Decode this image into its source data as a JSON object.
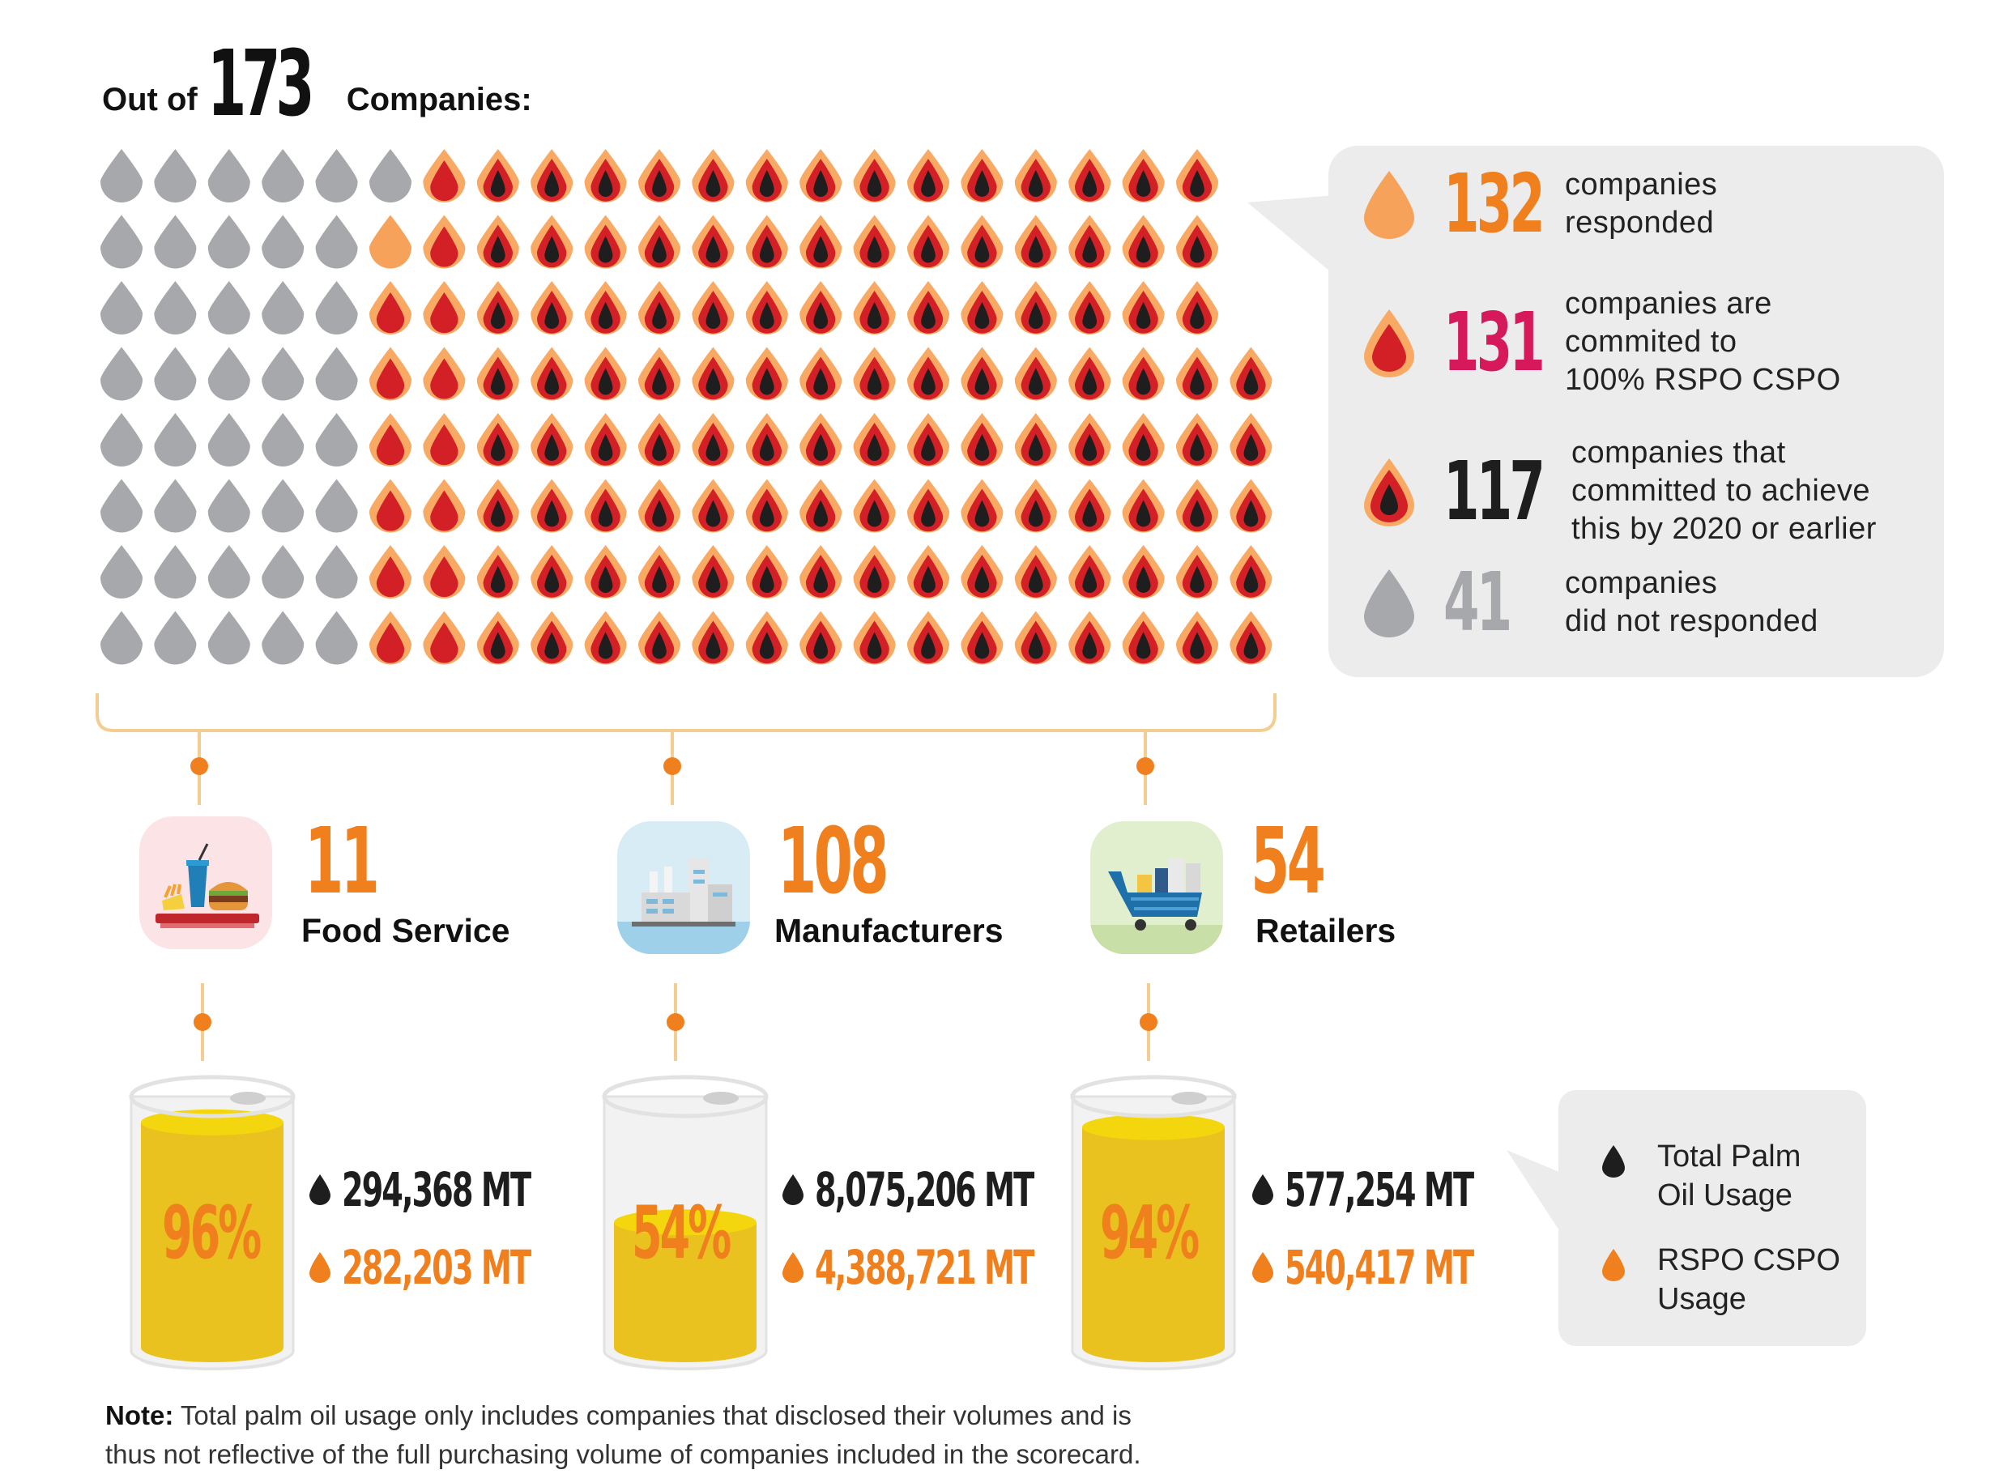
{
  "title": {
    "prefix": "Out of",
    "total": "173",
    "suffix": "Companies:"
  },
  "colors": {
    "gray": "#a7a8ab",
    "light_orange": "#f7a25a",
    "orange_rim": "#f8a963",
    "red": "#d31f26",
    "black": "#1e1e1e",
    "accent_orange": "#f07f1e",
    "magenta": "#d6195b",
    "light_gray_number": "#a7a8ab"
  },
  "chart_data": {
    "type": "waffle",
    "total": 173,
    "columns": [
      "not_responded",
      "responded",
      "committed_100",
      "committed_2020"
    ],
    "grid_rows": [
      [
        "gray",
        "gray",
        "gray",
        "gray",
        "gray",
        "gray",
        "red",
        "black",
        "black",
        "black",
        "black",
        "black",
        "black",
        "black",
        "black",
        "black",
        "black",
        "black",
        "black",
        "black",
        "black"
      ],
      [
        "gray",
        "gray",
        "gray",
        "gray",
        "gray",
        "orange",
        "red",
        "black",
        "black",
        "black",
        "black",
        "black",
        "black",
        "black",
        "black",
        "black",
        "black",
        "black",
        "black",
        "black",
        "black"
      ],
      [
        "gray",
        "gray",
        "gray",
        "gray",
        "gray",
        "red",
        "red",
        "black",
        "black",
        "black",
        "black",
        "black",
        "black",
        "black",
        "black",
        "black",
        "black",
        "black",
        "black",
        "black",
        "black"
      ],
      [
        "gray",
        "gray",
        "gray",
        "gray",
        "gray",
        "red",
        "red",
        "black",
        "black",
        "black",
        "black",
        "black",
        "black",
        "black",
        "black",
        "black",
        "black",
        "black",
        "black",
        "black",
        "black",
        "black"
      ],
      [
        "gray",
        "gray",
        "gray",
        "gray",
        "gray",
        "red",
        "red",
        "black",
        "black",
        "black",
        "black",
        "black",
        "black",
        "black",
        "black",
        "black",
        "black",
        "black",
        "black",
        "black",
        "black",
        "black"
      ],
      [
        "gray",
        "gray",
        "gray",
        "gray",
        "gray",
        "red",
        "red",
        "black",
        "black",
        "black",
        "black",
        "black",
        "black",
        "black",
        "black",
        "black",
        "black",
        "black",
        "black",
        "black",
        "black",
        "black"
      ],
      [
        "gray",
        "gray",
        "gray",
        "gray",
        "gray",
        "red",
        "red",
        "black",
        "black",
        "black",
        "black",
        "black",
        "black",
        "black",
        "black",
        "black",
        "black",
        "black",
        "black",
        "black",
        "black",
        "black"
      ],
      [
        "gray",
        "gray",
        "gray",
        "gray",
        "gray",
        "red",
        "red",
        "black",
        "black",
        "black",
        "black",
        "black",
        "black",
        "black",
        "black",
        "black",
        "black",
        "black",
        "black",
        "black",
        "black",
        "black"
      ]
    ],
    "legend": [
      {
        "key": "responded",
        "value": "132",
        "lines": [
          "companies",
          "responded"
        ]
      },
      {
        "key": "committed_100",
        "value": "131",
        "lines": [
          "companies are",
          "commited to",
          "100% RSPO CSPO"
        ]
      },
      {
        "key": "committed_2020",
        "value": "117",
        "lines": [
          "companies that",
          "committed to achieve",
          "this by 2020 or earlier"
        ]
      },
      {
        "key": "not_responded",
        "value": "41",
        "lines": [
          "companies",
          "did not responded"
        ]
      }
    ],
    "sectors": [
      {
        "count": "11",
        "label": "Food Service",
        "icon": "food-tray-icon",
        "percent": 96,
        "percent_label": "96%",
        "total_usage": "294,368 MT",
        "rspo_usage": "282,203 MT"
      },
      {
        "count": "108",
        "label": "Manufacturers",
        "icon": "factory-icon",
        "percent": 54,
        "percent_label": "54%",
        "total_usage": "8,075,206 MT",
        "rspo_usage": "4,388,721 MT"
      },
      {
        "count": "54",
        "label": "Retailers",
        "icon": "shopping-cart-icon",
        "percent": 94,
        "percent_label": "94%",
        "total_usage": "577,254 MT",
        "rspo_usage": "540,417 MT"
      }
    ],
    "usage_legend": [
      {
        "key": "total",
        "lines": [
          "Total Palm",
          "Oil Usage"
        ]
      },
      {
        "key": "rspo",
        "lines": [
          "RSPO CSPO",
          "Usage"
        ]
      }
    ]
  },
  "note": {
    "label": "Note:",
    "text": "Total palm oil usage only includes companies that disclosed their volumes and is",
    "text2": "thus not reflective of the full purchasing volume of companies included in the scorecard."
  }
}
